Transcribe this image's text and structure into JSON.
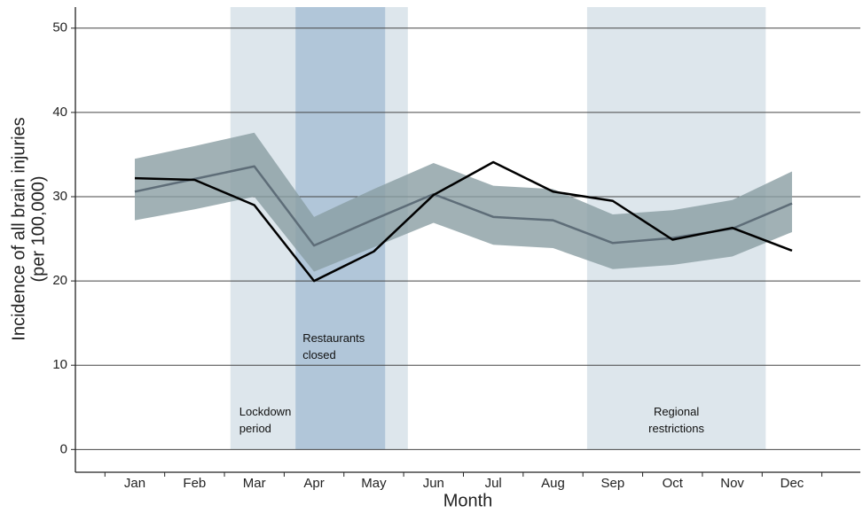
{
  "chart_data": {
    "type": "line",
    "x_label": "Month",
    "y_label": [
      "Incidence of all brain injuries",
      "(per 100,000)"
    ],
    "categories": [
      "Jan",
      "Feb",
      "Mar",
      "Apr",
      "May",
      "Jun",
      "Jul",
      "Aug",
      "Sep",
      "Oct",
      "Nov",
      "Dec"
    ],
    "ylim": [
      -2.7,
      52.5
    ],
    "yticks": [
      0,
      10,
      20,
      30,
      40,
      50
    ],
    "grid": true,
    "regions": [
      {
        "label": "Lockdown period",
        "start": 1.6,
        "end": 4.57,
        "color": "#dde6ec"
      },
      {
        "label": "Restaurants closed",
        "start": 2.69,
        "end": 4.19,
        "color": "#a9bfd6"
      },
      {
        "label": "Regional restrictions",
        "start": 7.57,
        "end": 10.56,
        "color": "#dde6ec"
      }
    ],
    "band": {
      "color": "#8a9ea2",
      "lower": [
        27.2,
        28.5,
        30.0,
        21.1,
        24.0,
        26.9,
        24.3,
        23.9,
        21.4,
        21.9,
        22.9,
        25.8
      ],
      "upper": [
        34.5,
        36.0,
        37.6,
        27.6,
        30.9,
        34.0,
        31.3,
        30.9,
        27.9,
        28.4,
        29.6,
        33.0
      ]
    },
    "series": [
      {
        "color": "#5e6d78",
        "values": [
          30.6,
          32.1,
          33.6,
          24.2,
          27.3,
          30.3,
          27.6,
          27.2,
          24.5,
          25.1,
          26.2,
          29.2
        ]
      },
      {
        "color": "#000000",
        "values": [
          32.2,
          32.0,
          29.0,
          20.0,
          23.5,
          30.2,
          34.1,
          30.6,
          29.5,
          24.9,
          26.3,
          23.6
        ]
      }
    ]
  }
}
